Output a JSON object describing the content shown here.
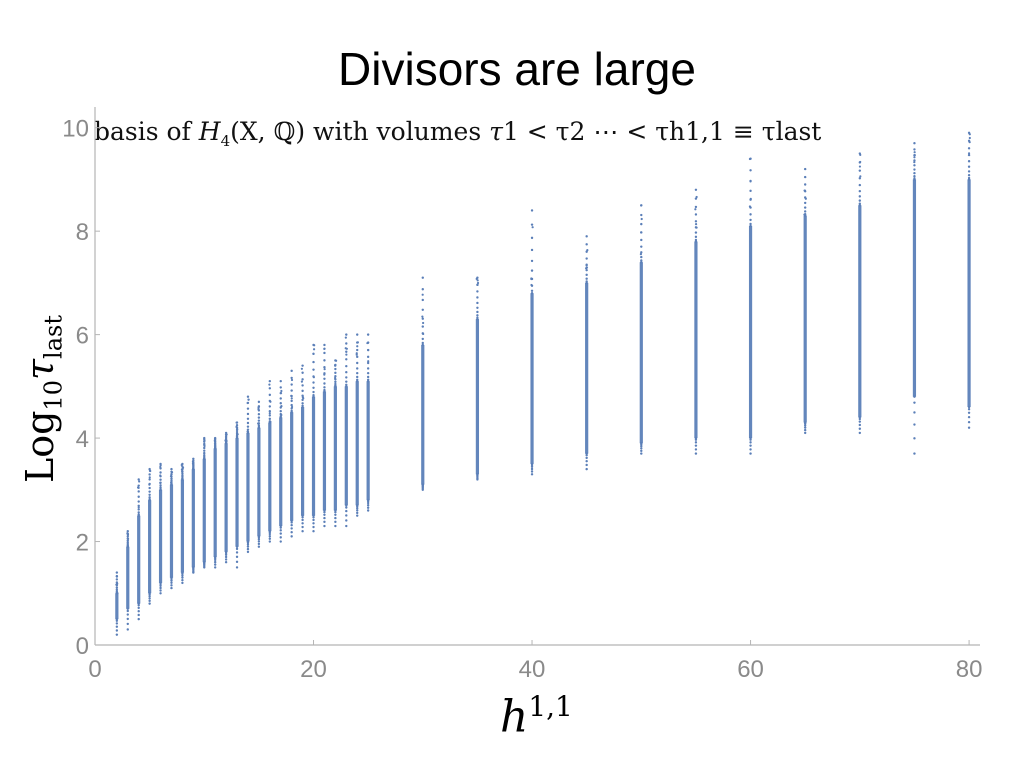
{
  "slide": {
    "title": "Divisors are large",
    "subtitle_prefix": "basis of ",
    "subtitle_H": "H",
    "subtitle_H_sub": "4",
    "subtitle_args": "(X, ℚ)",
    "subtitle_mid": " with volumes ",
    "subtitle_tau": "τ",
    "subtitle_rel": "1 < τ2 ⋯ < τh1,1 ≡ τlast"
  },
  "chart_data": {
    "type": "scatter",
    "title": "basis of H4(X,ℚ) with volumes τ1 < τ2 ⋯ < τh1,1 ≡ τlast",
    "xlabel": "h1,1",
    "ylabel": "Log10 τlast",
    "xlim": [
      0,
      81
    ],
    "ylim": [
      0,
      10.4
    ],
    "xticks": [
      0,
      20,
      40,
      60,
      80
    ],
    "yticks": [
      0,
      2,
      4,
      6,
      8,
      10
    ],
    "grid": false,
    "color": "#5b7fb8",
    "columns": [
      {
        "x": 2,
        "min": 0.2,
        "dense_lo": 0.5,
        "dense_hi": 1.0,
        "max": 1.4
      },
      {
        "x": 3,
        "min": 0.3,
        "dense_lo": 0.7,
        "dense_hi": 1.9,
        "max": 2.2
      },
      {
        "x": 4,
        "min": 0.5,
        "dense_lo": 0.8,
        "dense_hi": 2.5,
        "max": 3.2
      },
      {
        "x": 5,
        "min": 0.8,
        "dense_lo": 1.0,
        "dense_hi": 2.8,
        "max": 3.4
      },
      {
        "x": 6,
        "min": 1.0,
        "dense_lo": 1.2,
        "dense_hi": 3.0,
        "max": 3.5
      },
      {
        "x": 7,
        "min": 1.1,
        "dense_lo": 1.3,
        "dense_hi": 3.1,
        "max": 3.4
      },
      {
        "x": 8,
        "min": 1.2,
        "dense_lo": 1.4,
        "dense_hi": 3.2,
        "max": 3.5
      },
      {
        "x": 9,
        "min": 1.4,
        "dense_lo": 1.5,
        "dense_hi": 3.4,
        "max": 3.6
      },
      {
        "x": 10,
        "min": 1.5,
        "dense_lo": 1.6,
        "dense_hi": 3.6,
        "max": 4.0
      },
      {
        "x": 11,
        "min": 1.5,
        "dense_lo": 1.7,
        "dense_hi": 3.8,
        "max": 4.0
      },
      {
        "x": 12,
        "min": 1.6,
        "dense_lo": 1.8,
        "dense_hi": 3.9,
        "max": 4.1
      },
      {
        "x": 13,
        "min": 1.5,
        "dense_lo": 1.9,
        "dense_hi": 4.0,
        "max": 4.3
      },
      {
        "x": 14,
        "min": 1.8,
        "dense_lo": 2.0,
        "dense_hi": 4.1,
        "max": 4.8
      },
      {
        "x": 15,
        "min": 1.9,
        "dense_lo": 2.1,
        "dense_hi": 4.2,
        "max": 4.7
      },
      {
        "x": 16,
        "min": 2.0,
        "dense_lo": 2.2,
        "dense_hi": 4.3,
        "max": 5.1
      },
      {
        "x": 17,
        "min": 2.0,
        "dense_lo": 2.3,
        "dense_hi": 4.4,
        "max": 5.1
      },
      {
        "x": 18,
        "min": 2.1,
        "dense_lo": 2.4,
        "dense_hi": 4.5,
        "max": 5.3
      },
      {
        "x": 19,
        "min": 2.2,
        "dense_lo": 2.5,
        "dense_hi": 4.6,
        "max": 5.4
      },
      {
        "x": 20,
        "min": 2.2,
        "dense_lo": 2.5,
        "dense_hi": 4.8,
        "max": 5.8
      },
      {
        "x": 21,
        "min": 2.3,
        "dense_lo": 2.6,
        "dense_hi": 4.9,
        "max": 5.8
      },
      {
        "x": 22,
        "min": 2.3,
        "dense_lo": 2.6,
        "dense_hi": 5.0,
        "max": 5.5
      },
      {
        "x": 23,
        "min": 2.3,
        "dense_lo": 2.7,
        "dense_hi": 5.0,
        "max": 6.0
      },
      {
        "x": 24,
        "min": 2.5,
        "dense_lo": 2.7,
        "dense_hi": 5.1,
        "max": 6.0
      },
      {
        "x": 25,
        "min": 2.6,
        "dense_lo": 2.8,
        "dense_hi": 5.1,
        "max": 6.0
      },
      {
        "x": 30,
        "min": 3.0,
        "dense_lo": 3.1,
        "dense_hi": 5.8,
        "max": 7.1
      },
      {
        "x": 35,
        "min": 3.2,
        "dense_lo": 3.3,
        "dense_hi": 6.3,
        "max": 7.1
      },
      {
        "x": 40,
        "min": 3.3,
        "dense_lo": 3.5,
        "dense_hi": 6.8,
        "max": 8.4
      },
      {
        "x": 45,
        "min": 3.4,
        "dense_lo": 3.7,
        "dense_hi": 7.0,
        "max": 7.9
      },
      {
        "x": 50,
        "min": 3.7,
        "dense_lo": 3.9,
        "dense_hi": 7.4,
        "max": 8.5
      },
      {
        "x": 55,
        "min": 3.7,
        "dense_lo": 4.0,
        "dense_hi": 7.8,
        "max": 8.8
      },
      {
        "x": 60,
        "min": 3.7,
        "dense_lo": 4.0,
        "dense_hi": 8.1,
        "max": 9.4
      },
      {
        "x": 65,
        "min": 4.1,
        "dense_lo": 4.3,
        "dense_hi": 8.3,
        "max": 9.2
      },
      {
        "x": 70,
        "min": 4.1,
        "dense_lo": 4.4,
        "dense_hi": 8.5,
        "max": 9.5
      },
      {
        "x": 75,
        "min": 3.7,
        "dense_lo": 4.8,
        "dense_hi": 9.0,
        "max": 9.7
      },
      {
        "x": 80,
        "min": 4.2,
        "dense_lo": 4.6,
        "dense_hi": 9.0,
        "max": 9.9
      }
    ]
  }
}
